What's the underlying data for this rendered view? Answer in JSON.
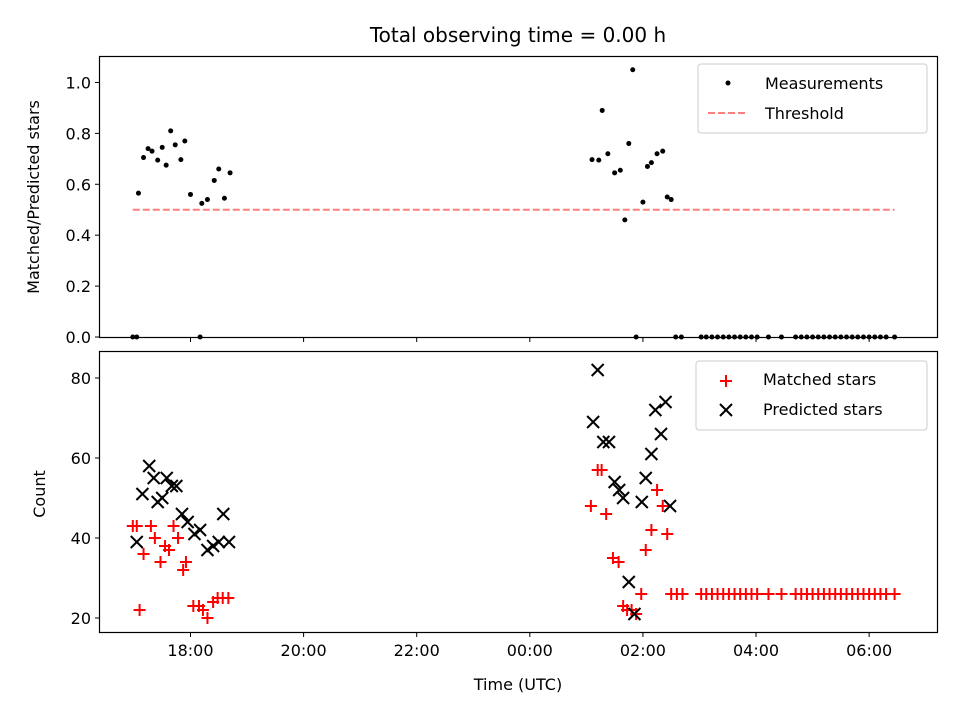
{
  "chart_data": [
    {
      "type": "scatter",
      "title": "Total observing time = 0.00 h",
      "ylabel": "Matched/Predicted stars",
      "xlim": [
        16.4,
        31.2
      ],
      "ylim": [
        0.0,
        1.1
      ],
      "yticks": [
        0.0,
        0.2,
        0.4,
        0.6,
        0.8,
        1.0
      ],
      "ytick_labels": [
        "0.0",
        "0.2",
        "0.4",
        "0.6",
        "0.8",
        "1.0"
      ],
      "legend_position": "upper-right",
      "series": [
        {
          "name": "Measurements",
          "marker": "dot",
          "color": "#000000",
          "points": [
            [
              16.98,
              0.0
            ],
            [
              17.05,
              0.0
            ],
            [
              17.08,
              0.565
            ],
            [
              17.17,
              0.705
            ],
            [
              17.25,
              0.74
            ],
            [
              17.32,
              0.73
            ],
            [
              17.42,
              0.695
            ],
            [
              17.5,
              0.745
            ],
            [
              17.57,
              0.675
            ],
            [
              17.65,
              0.81
            ],
            [
              17.73,
              0.755
            ],
            [
              17.83,
              0.697
            ],
            [
              17.9,
              0.77
            ],
            [
              18.0,
              0.56
            ],
            [
              18.17,
              0.0
            ],
            [
              18.2,
              0.525
            ],
            [
              18.3,
              0.54
            ],
            [
              18.42,
              0.615
            ],
            [
              18.5,
              0.66
            ],
            [
              18.6,
              0.545
            ],
            [
              18.7,
              0.645
            ],
            [
              25.1,
              0.697
            ],
            [
              25.22,
              0.695
            ],
            [
              25.28,
              0.89
            ],
            [
              25.38,
              0.72
            ],
            [
              25.5,
              0.645
            ],
            [
              25.6,
              0.655
            ],
            [
              25.68,
              0.46
            ],
            [
              25.75,
              0.76
            ],
            [
              25.82,
              1.05
            ],
            [
              25.88,
              0.0
            ],
            [
              26.0,
              0.53
            ],
            [
              26.08,
              0.67
            ],
            [
              26.15,
              0.685
            ],
            [
              26.25,
              0.72
            ],
            [
              26.35,
              0.73
            ],
            [
              26.43,
              0.55
            ],
            [
              26.5,
              0.54
            ],
            [
              26.58,
              0.0
            ],
            [
              26.68,
              0.0
            ],
            [
              27.03,
              0.0
            ],
            [
              27.12,
              0.0
            ],
            [
              27.22,
              0.0
            ],
            [
              27.32,
              0.0
            ],
            [
              27.42,
              0.0
            ],
            [
              27.52,
              0.0
            ],
            [
              27.62,
              0.0
            ],
            [
              27.72,
              0.0
            ],
            [
              27.82,
              0.0
            ],
            [
              27.92,
              0.0
            ],
            [
              28.02,
              0.0
            ],
            [
              28.22,
              0.0
            ],
            [
              28.45,
              0.0
            ],
            [
              28.7,
              0.0
            ],
            [
              28.8,
              0.0
            ],
            [
              28.9,
              0.0
            ],
            [
              29.0,
              0.0
            ],
            [
              29.1,
              0.0
            ],
            [
              29.2,
              0.0
            ],
            [
              29.3,
              0.0
            ],
            [
              29.4,
              0.0
            ],
            [
              29.5,
              0.0
            ],
            [
              29.6,
              0.0
            ],
            [
              29.7,
              0.0
            ],
            [
              29.8,
              0.0
            ],
            [
              29.9,
              0.0
            ],
            [
              30.0,
              0.0
            ],
            [
              30.1,
              0.0
            ],
            [
              30.2,
              0.0
            ],
            [
              30.3,
              0.0
            ],
            [
              30.45,
              0.0
            ]
          ]
        },
        {
          "name": "Threshold",
          "marker": "dashed-line",
          "color": "#ff7f7f",
          "points": [
            [
              16.98,
              0.5
            ],
            [
              30.45,
              0.5
            ]
          ]
        }
      ]
    },
    {
      "type": "scatter",
      "xlabel": "Time (UTC)",
      "ylabel": "Count",
      "xlim": [
        16.4,
        31.2
      ],
      "ylim": [
        16.5,
        86.5
      ],
      "xticks": [
        18,
        20,
        22,
        24,
        26,
        28,
        30
      ],
      "xtick_labels": [
        "18:00",
        "20:00",
        "22:00",
        "00:00",
        "02:00",
        "04:00",
        "06:00"
      ],
      "yticks": [
        20,
        40,
        60,
        80
      ],
      "ytick_labels": [
        "20",
        "40",
        "60",
        "80"
      ],
      "legend_position": "upper-right",
      "series": [
        {
          "name": "Matched stars",
          "marker": "plus",
          "color": "#ff0000",
          "points": [
            [
              16.98,
              43
            ],
            [
              17.05,
              43
            ],
            [
              17.1,
              22
            ],
            [
              17.17,
              36
            ],
            [
              17.3,
              43
            ],
            [
              17.37,
              40
            ],
            [
              17.47,
              34
            ],
            [
              17.55,
              38
            ],
            [
              17.62,
              37
            ],
            [
              17.7,
              43
            ],
            [
              17.78,
              40
            ],
            [
              17.87,
              32
            ],
            [
              17.92,
              34
            ],
            [
              18.05,
              23
            ],
            [
              18.15,
              23
            ],
            [
              18.22,
              22
            ],
            [
              18.3,
              20
            ],
            [
              18.4,
              24
            ],
            [
              18.48,
              25
            ],
            [
              18.57,
              25
            ],
            [
              18.67,
              25
            ],
            [
              25.08,
              48
            ],
            [
              25.2,
              57
            ],
            [
              25.27,
              57
            ],
            [
              25.35,
              46
            ],
            [
              25.47,
              35
            ],
            [
              25.57,
              34
            ],
            [
              25.65,
              23
            ],
            [
              25.72,
              22
            ],
            [
              25.8,
              22
            ],
            [
              25.88,
              21
            ],
            [
              25.97,
              26
            ],
            [
              26.05,
              37
            ],
            [
              26.15,
              42
            ],
            [
              26.25,
              52
            ],
            [
              26.35,
              48
            ],
            [
              26.43,
              41
            ],
            [
              26.5,
              26
            ],
            [
              26.6,
              26
            ],
            [
              26.7,
              26
            ],
            [
              27.03,
              26
            ],
            [
              27.12,
              26
            ],
            [
              27.22,
              26
            ],
            [
              27.32,
              26
            ],
            [
              27.42,
              26
            ],
            [
              27.52,
              26
            ],
            [
              27.62,
              26
            ],
            [
              27.72,
              26
            ],
            [
              27.82,
              26
            ],
            [
              27.92,
              26
            ],
            [
              28.02,
              26
            ],
            [
              28.22,
              26
            ],
            [
              28.45,
              26
            ],
            [
              28.7,
              26
            ],
            [
              28.8,
              26
            ],
            [
              28.9,
              26
            ],
            [
              29.0,
              26
            ],
            [
              29.1,
              26
            ],
            [
              29.2,
              26
            ],
            [
              29.3,
              26
            ],
            [
              29.4,
              26
            ],
            [
              29.5,
              26
            ],
            [
              29.6,
              26
            ],
            [
              29.7,
              26
            ],
            [
              29.8,
              26
            ],
            [
              29.9,
              26
            ],
            [
              30.0,
              26
            ],
            [
              30.1,
              26
            ],
            [
              30.2,
              26
            ],
            [
              30.3,
              26
            ],
            [
              30.45,
              26
            ]
          ]
        },
        {
          "name": "Predicted stars",
          "marker": "x",
          "color": "#000000",
          "points": [
            [
              17.05,
              39
            ],
            [
              17.15,
              51
            ],
            [
              17.27,
              58
            ],
            [
              17.35,
              55
            ],
            [
              17.42,
              49
            ],
            [
              17.5,
              50
            ],
            [
              17.58,
              55
            ],
            [
              17.67,
              53
            ],
            [
              17.75,
              53
            ],
            [
              17.85,
              46
            ],
            [
              17.95,
              44
            ],
            [
              18.07,
              41
            ],
            [
              18.17,
              42
            ],
            [
              18.3,
              37
            ],
            [
              18.4,
              38
            ],
            [
              18.5,
              39
            ],
            [
              18.58,
              46
            ],
            [
              18.68,
              39
            ],
            [
              25.12,
              69
            ],
            [
              25.2,
              82
            ],
            [
              25.3,
              64
            ],
            [
              25.4,
              64
            ],
            [
              25.5,
              54
            ],
            [
              25.58,
              52
            ],
            [
              25.65,
              50
            ],
            [
              25.75,
              29
            ],
            [
              25.85,
              21
            ],
            [
              25.98,
              49
            ],
            [
              26.05,
              55
            ],
            [
              26.15,
              61
            ],
            [
              26.22,
              72
            ],
            [
              26.32,
              66
            ],
            [
              26.4,
              74
            ],
            [
              26.48,
              48
            ]
          ]
        }
      ]
    }
  ]
}
